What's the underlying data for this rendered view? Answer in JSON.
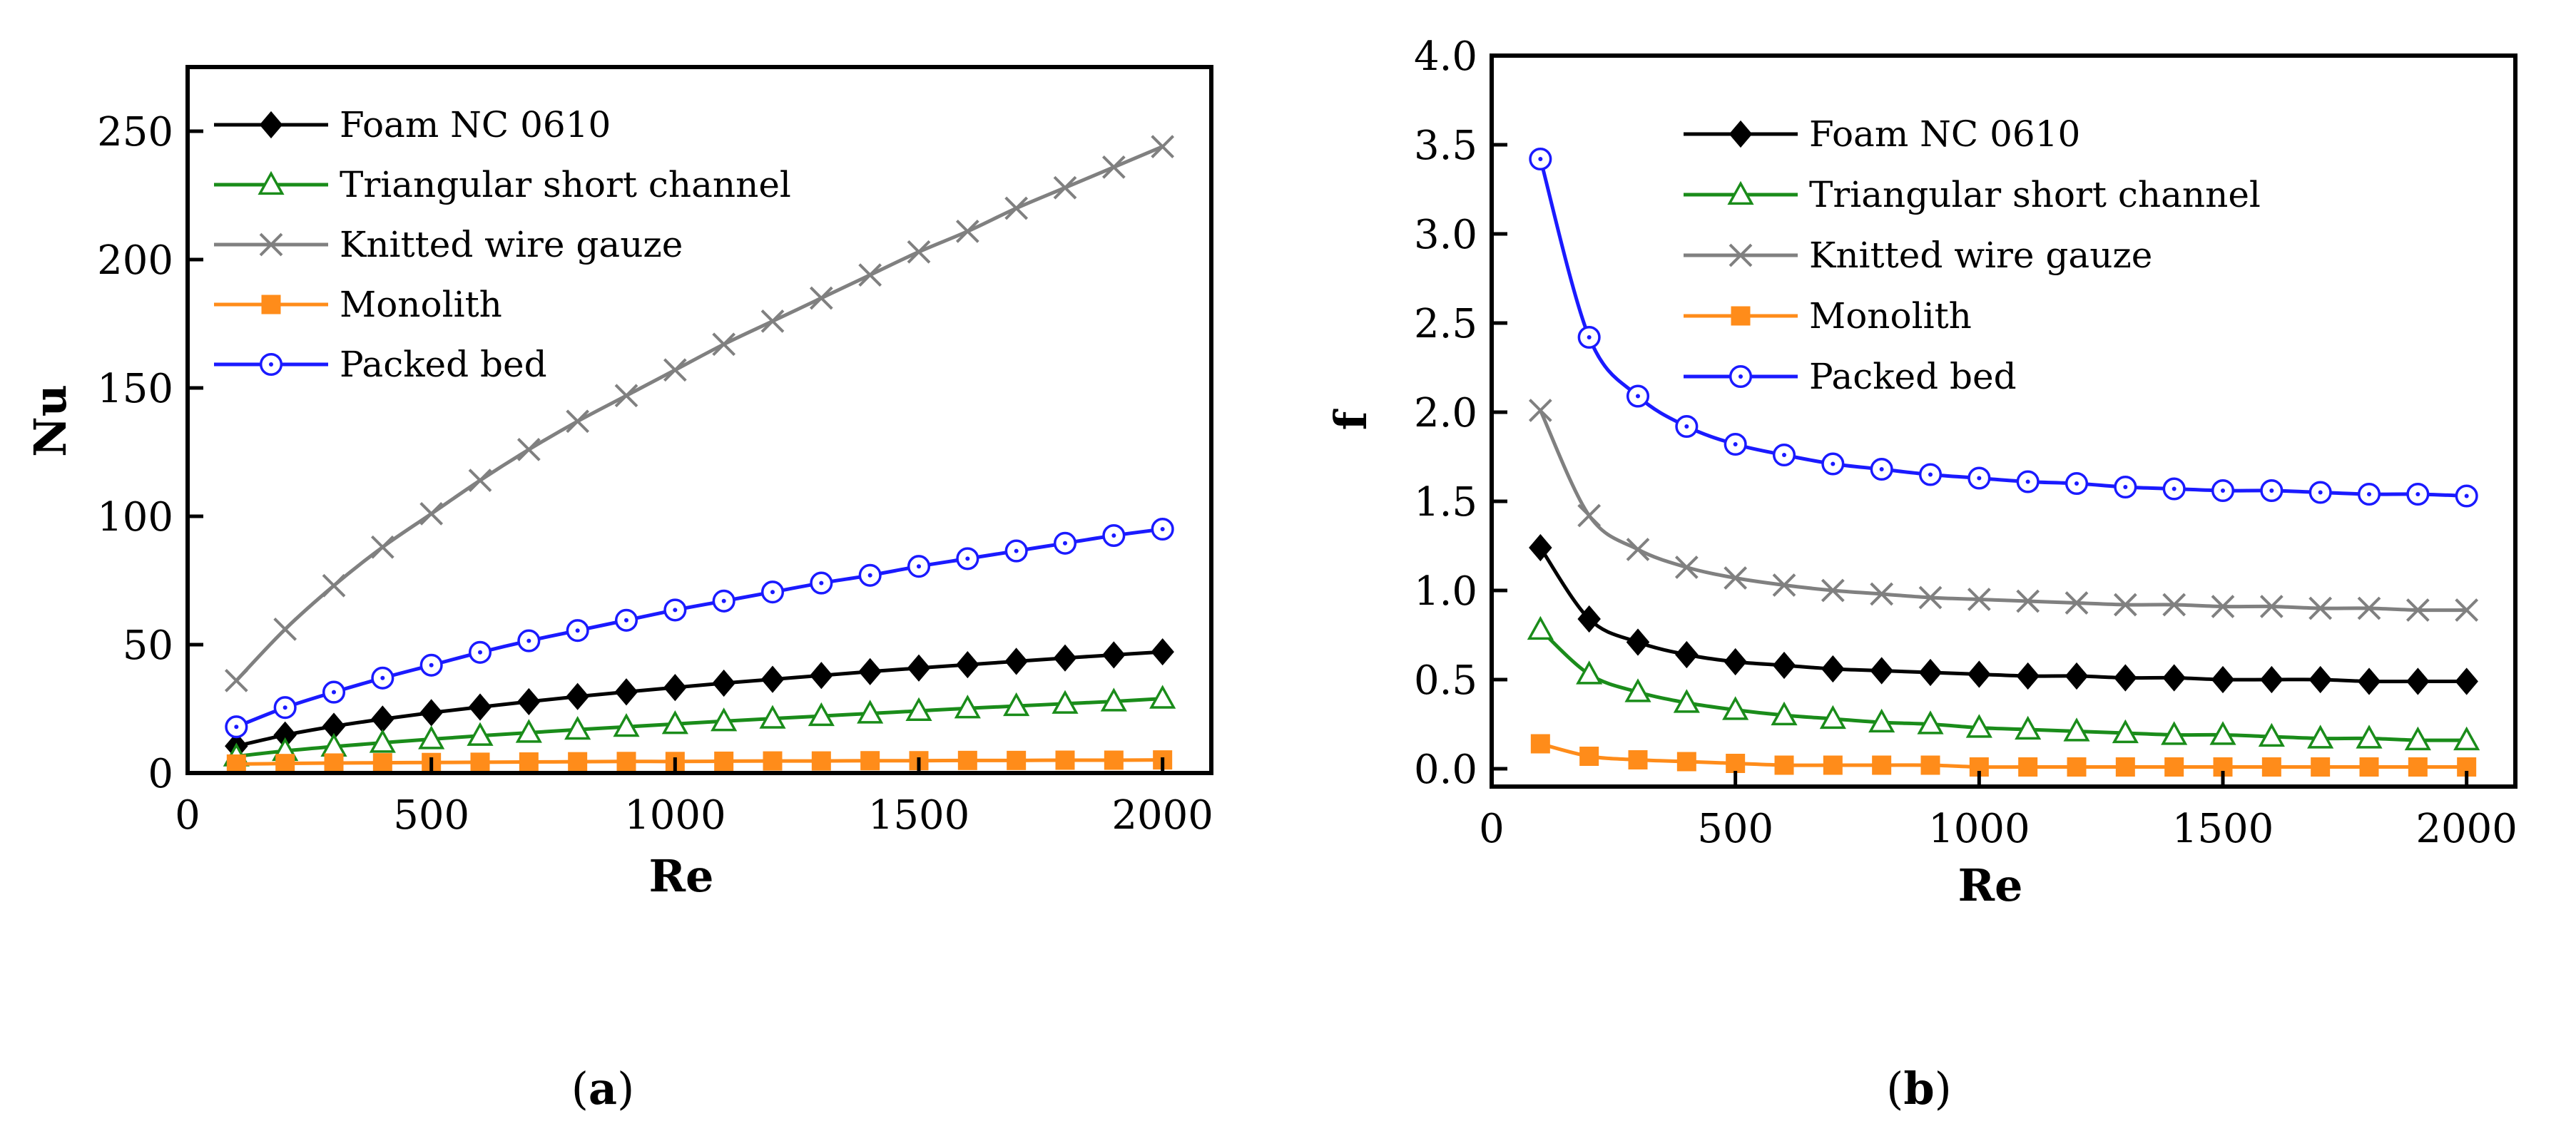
{
  "chart_data": [
    {
      "id": "a",
      "type": "line",
      "panel_label": "a",
      "title": "",
      "xlabel": "Re",
      "ylabel": "Nu",
      "xlim": [
        0,
        2100
      ],
      "ylim": [
        0,
        275
      ],
      "xticks": [
        0,
        500,
        1000,
        1500,
        2000
      ],
      "yticks": [
        0,
        50,
        100,
        150,
        200,
        250
      ],
      "x": [
        100,
        200,
        300,
        400,
        500,
        600,
        700,
        800,
        900,
        1000,
        1100,
        1200,
        1300,
        1400,
        1500,
        1600,
        1700,
        1800,
        1900,
        2000
      ],
      "legend_position": "top-left",
      "series": [
        {
          "name": "Foam NC 0610",
          "color": "#000000",
          "marker": "diamond",
          "values": [
            10.5,
            14.8,
            18.2,
            21.0,
            23.5,
            25.7,
            27.8,
            29.8,
            31.6,
            33.3,
            35.0,
            36.5,
            38.0,
            39.5,
            40.9,
            42.2,
            43.5,
            44.8,
            46.0,
            47.2
          ]
        },
        {
          "name": "Triangular short channel",
          "color": "#1a8c1a",
          "marker": "triangle",
          "values": [
            6.5,
            8.6,
            10.3,
            11.8,
            13.2,
            14.5,
            15.7,
            16.9,
            18.0,
            19.1,
            20.2,
            21.2,
            22.2,
            23.2,
            24.2,
            25.2,
            26.1,
            27.0,
            27.9,
            29.0
          ]
        },
        {
          "name": "Knitted wire gauze",
          "color": "#808080",
          "marker": "x",
          "values": [
            36.0,
            56.0,
            73.0,
            88.0,
            101.0,
            114.0,
            126.0,
            137.0,
            147.0,
            157.0,
            167.0,
            176.0,
            185.0,
            194.0,
            203.0,
            211.0,
            220.0,
            228.0,
            236.0,
            244.0
          ]
        },
        {
          "name": "Monolith",
          "color": "#ff8c1a",
          "marker": "square",
          "values": [
            3.5,
            3.7,
            3.9,
            4.0,
            4.1,
            4.2,
            4.3,
            4.4,
            4.5,
            4.5,
            4.6,
            4.7,
            4.7,
            4.8,
            4.8,
            4.9,
            4.9,
            5.0,
            5.0,
            5.1
          ]
        },
        {
          "name": "Packed bed",
          "color": "#1a1aff",
          "marker": "circle",
          "values": [
            18.0,
            25.5,
            31.5,
            37.0,
            42.0,
            47.0,
            51.5,
            55.5,
            59.5,
            63.5,
            67.0,
            70.5,
            74.0,
            77.0,
            80.5,
            83.5,
            86.5,
            89.5,
            92.5,
            95.0
          ]
        }
      ]
    },
    {
      "id": "b",
      "type": "line",
      "panel_label": "b",
      "title": "",
      "xlabel": "Re",
      "ylabel": "f",
      "xlim": [
        0,
        2100
      ],
      "ylim": [
        -0.1,
        4.0
      ],
      "xticks": [
        0,
        500,
        1000,
        1500,
        2000
      ],
      "yticks": [
        0.0,
        0.5,
        1.0,
        1.5,
        2.0,
        2.5,
        3.0,
        3.5,
        4.0
      ],
      "ytick_labels": [
        "0.0",
        "0.5",
        "1.0",
        "1.5",
        "2.0",
        "2.5",
        "3.0",
        "3.5",
        "4.0"
      ],
      "x": [
        100,
        200,
        300,
        400,
        500,
        600,
        700,
        800,
        900,
        1000,
        1100,
        1200,
        1300,
        1400,
        1500,
        1600,
        1700,
        1800,
        1900,
        2000
      ],
      "legend_position": "top-center",
      "series": [
        {
          "name": "Foam NC 0610",
          "color": "#000000",
          "marker": "diamond",
          "values": [
            1.24,
            0.84,
            0.71,
            0.64,
            0.6,
            0.58,
            0.56,
            0.55,
            0.54,
            0.53,
            0.52,
            0.52,
            0.51,
            0.51,
            0.5,
            0.5,
            0.5,
            0.49,
            0.49,
            0.49
          ]
        },
        {
          "name": "Triangular short channel",
          "color": "#1a8c1a",
          "marker": "triangle",
          "values": [
            0.78,
            0.53,
            0.43,
            0.37,
            0.33,
            0.3,
            0.28,
            0.26,
            0.25,
            0.23,
            0.22,
            0.21,
            0.2,
            0.19,
            0.19,
            0.18,
            0.17,
            0.17,
            0.16,
            0.16
          ]
        },
        {
          "name": "Knitted wire gauze",
          "color": "#808080",
          "marker": "x",
          "values": [
            2.01,
            1.42,
            1.23,
            1.13,
            1.07,
            1.03,
            1.0,
            0.98,
            0.96,
            0.95,
            0.94,
            0.93,
            0.92,
            0.92,
            0.91,
            0.91,
            0.9,
            0.9,
            0.89,
            0.89
          ]
        },
        {
          "name": "Monolith",
          "color": "#ff8c1a",
          "marker": "square",
          "values": [
            0.14,
            0.07,
            0.05,
            0.04,
            0.03,
            0.02,
            0.02,
            0.02,
            0.02,
            0.01,
            0.01,
            0.01,
            0.01,
            0.01,
            0.01,
            0.01,
            0.01,
            0.01,
            0.01,
            0.01
          ]
        },
        {
          "name": "Packed bed",
          "color": "#1a1aff",
          "marker": "circle",
          "values": [
            3.42,
            2.42,
            2.09,
            1.92,
            1.82,
            1.76,
            1.71,
            1.68,
            1.65,
            1.63,
            1.61,
            1.6,
            1.58,
            1.57,
            1.56,
            1.56,
            1.55,
            1.54,
            1.54,
            1.53
          ]
        }
      ]
    }
  ]
}
